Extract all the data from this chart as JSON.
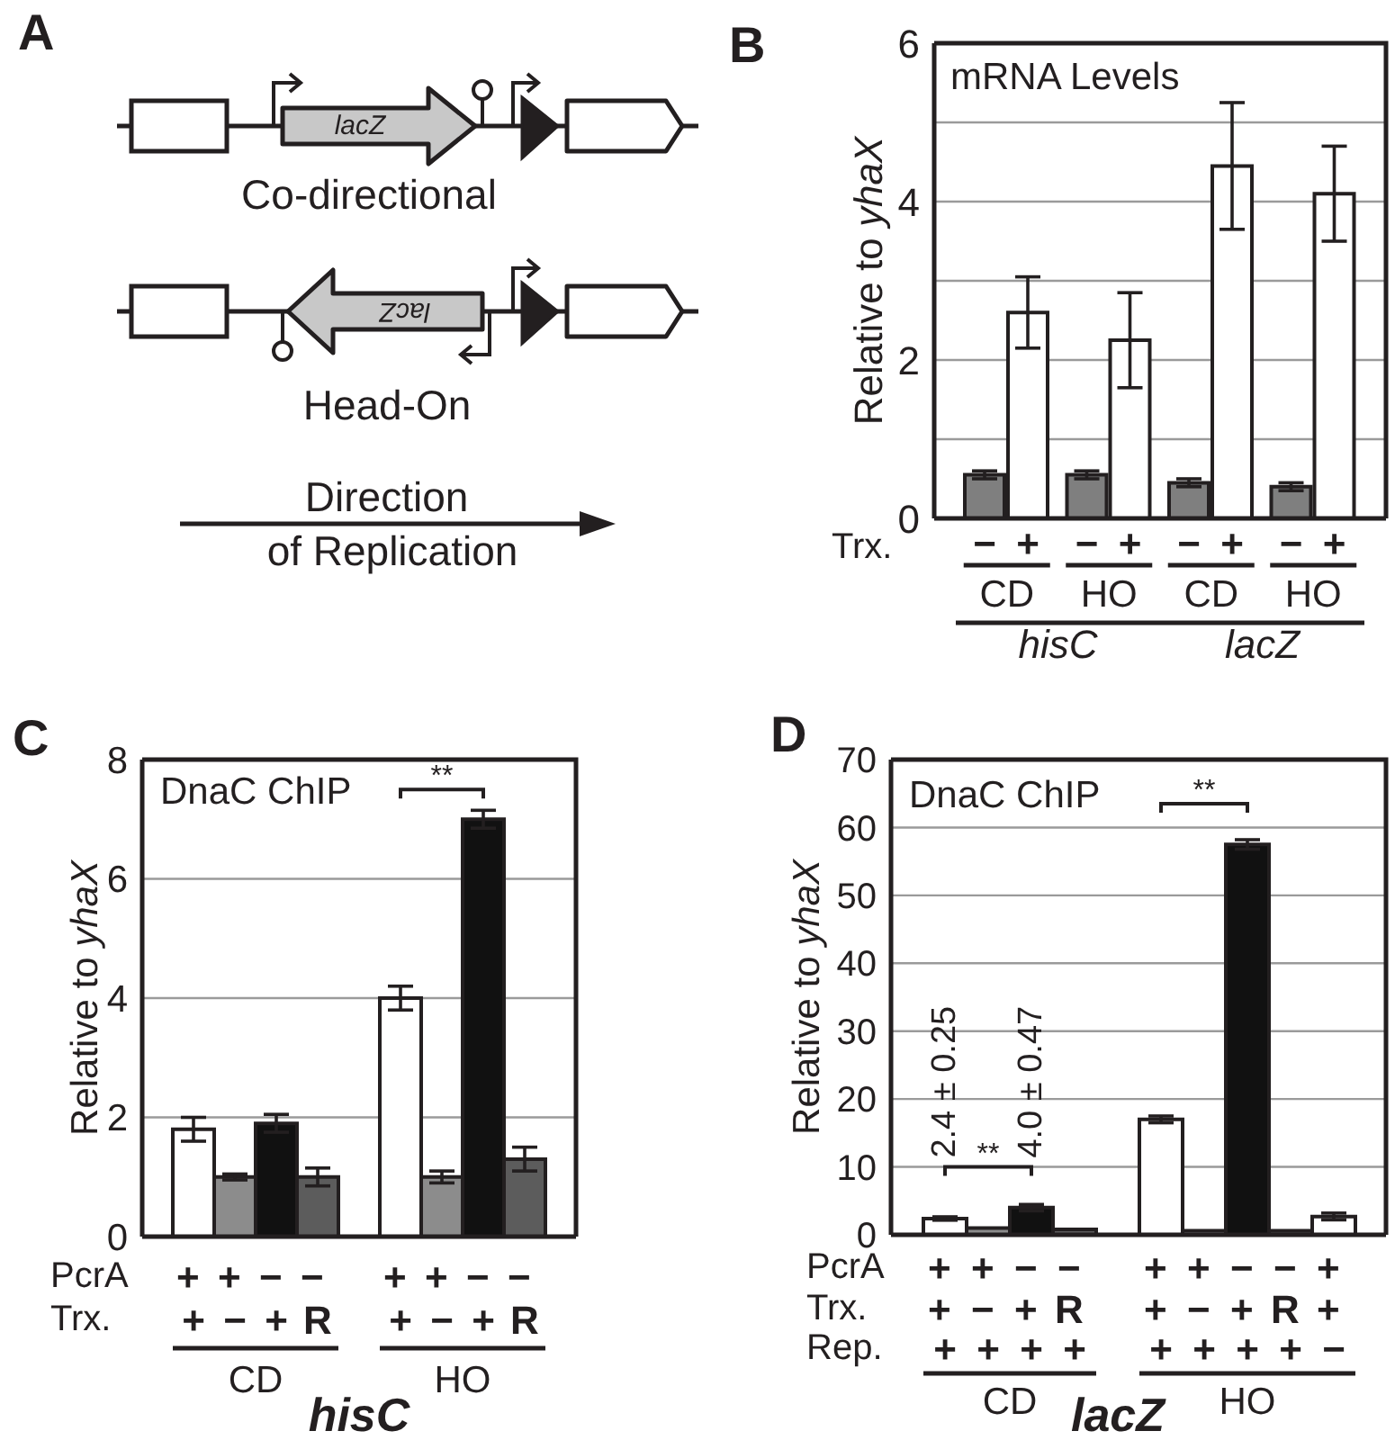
{
  "chart_data": [
    {
      "type": "other",
      "annotations": [
        "A",
        "lacZ",
        "Co-directional",
        "lacZ",
        "Head-On",
        "Direction of Replication"
      ]
    },
    {
      "type": "bar",
      "title": "mRNA Levels",
      "ylabel": "Relative to yhaX",
      "categories": [
        "CD",
        "HO",
        "CD",
        "HO"
      ],
      "series": [
        {
          "name": "−",
          "color": "#7f7f7f",
          "values": [
            0.55,
            0.55,
            0.45,
            0.4
          ],
          "errors": [
            0.05,
            0.05,
            0.05,
            0.05
          ]
        },
        {
          "name": "+",
          "color": "#ffffff",
          "values": [
            2.6,
            2.25,
            4.45,
            4.1
          ],
          "errors": [
            0.45,
            0.6,
            0.8,
            0.6
          ]
        }
      ],
      "ylim": [
        0,
        6
      ],
      "yticks": [
        0,
        {
          "value": 1,
          "label": null
        },
        2,
        {
          "value": 3,
          "label": null
        },
        4,
        {
          "value": 5,
          "label": null
        },
        6
      ],
      "grid": "y",
      "annotations": [
        "B",
        "Trx.",
        "hisC",
        "lacZ"
      ]
    },
    {
      "type": "bar",
      "title": "DnaC ChIP",
      "ylabel": "Relative to yhaX",
      "categories": [
        "+\n+",
        "+\n−",
        "−\n+",
        "−\nR",
        null,
        "+\n+",
        "+\n−",
        "−\n+",
        "−\nR"
      ],
      "values": [
        1.8,
        1.0,
        1.9,
        1.0,
        null,
        4.0,
        1.0,
        7.0,
        1.3
      ],
      "errors": [
        0.2,
        0.05,
        0.15,
        0.15,
        null,
        0.2,
        0.1,
        0.15,
        0.2
      ],
      "colors": [
        "#ffffff",
        "#8c8c8c",
        "#111111",
        "#5c5c5c",
        null,
        "#ffffff",
        "#8c8c8c",
        "#111111",
        "#5c5c5c"
      ],
      "ylim": [
        0,
        8
      ],
      "yticks": [
        0,
        2,
        4,
        6,
        8
      ],
      "grid": "y",
      "annotations": [
        "C",
        "PcrA",
        "Trx.",
        "CD",
        "HO",
        "hisC",
        "**"
      ]
    },
    {
      "type": "bar",
      "title": "DnaC ChIP",
      "ylabel": "Relative to yhaX",
      "categories": [
        "+\n+\n+",
        "+\n−\n+",
        "−\n+\n+",
        "−\nR\n+",
        null,
        "+\n+\n+",
        "+\n−\n+",
        "−\n+\n+",
        "−\nR\n+",
        "+\n+\n−"
      ],
      "values": [
        2.4,
        1.0,
        4.0,
        0.8,
        null,
        17,
        0.6,
        57.5,
        0.6,
        2.7
      ],
      "errors": [
        0.25,
        null,
        0.47,
        null,
        null,
        0.5,
        null,
        0.7,
        null,
        0.5
      ],
      "value_labels": [
        "2.4 ± 0.25",
        null,
        "4.0 ± 0.47",
        null,
        null,
        null,
        null,
        null,
        null,
        null
      ],
      "colors": [
        "#ffffff",
        "#8c8c8c",
        "#111111",
        "#5c5c5c",
        null,
        "#ffffff",
        "#8c8c8c",
        "#111111",
        "#5c5c5c",
        "#ffffff"
      ],
      "ylim": [
        0,
        70
      ],
      "yticks": [
        0,
        10,
        20,
        30,
        40,
        50,
        60,
        70
      ],
      "grid": "y",
      "annotations": [
        "D",
        "PcrA",
        "Trx.",
        "Rep.",
        "CD",
        "HO",
        "lacZ",
        "**",
        "**"
      ]
    }
  ]
}
